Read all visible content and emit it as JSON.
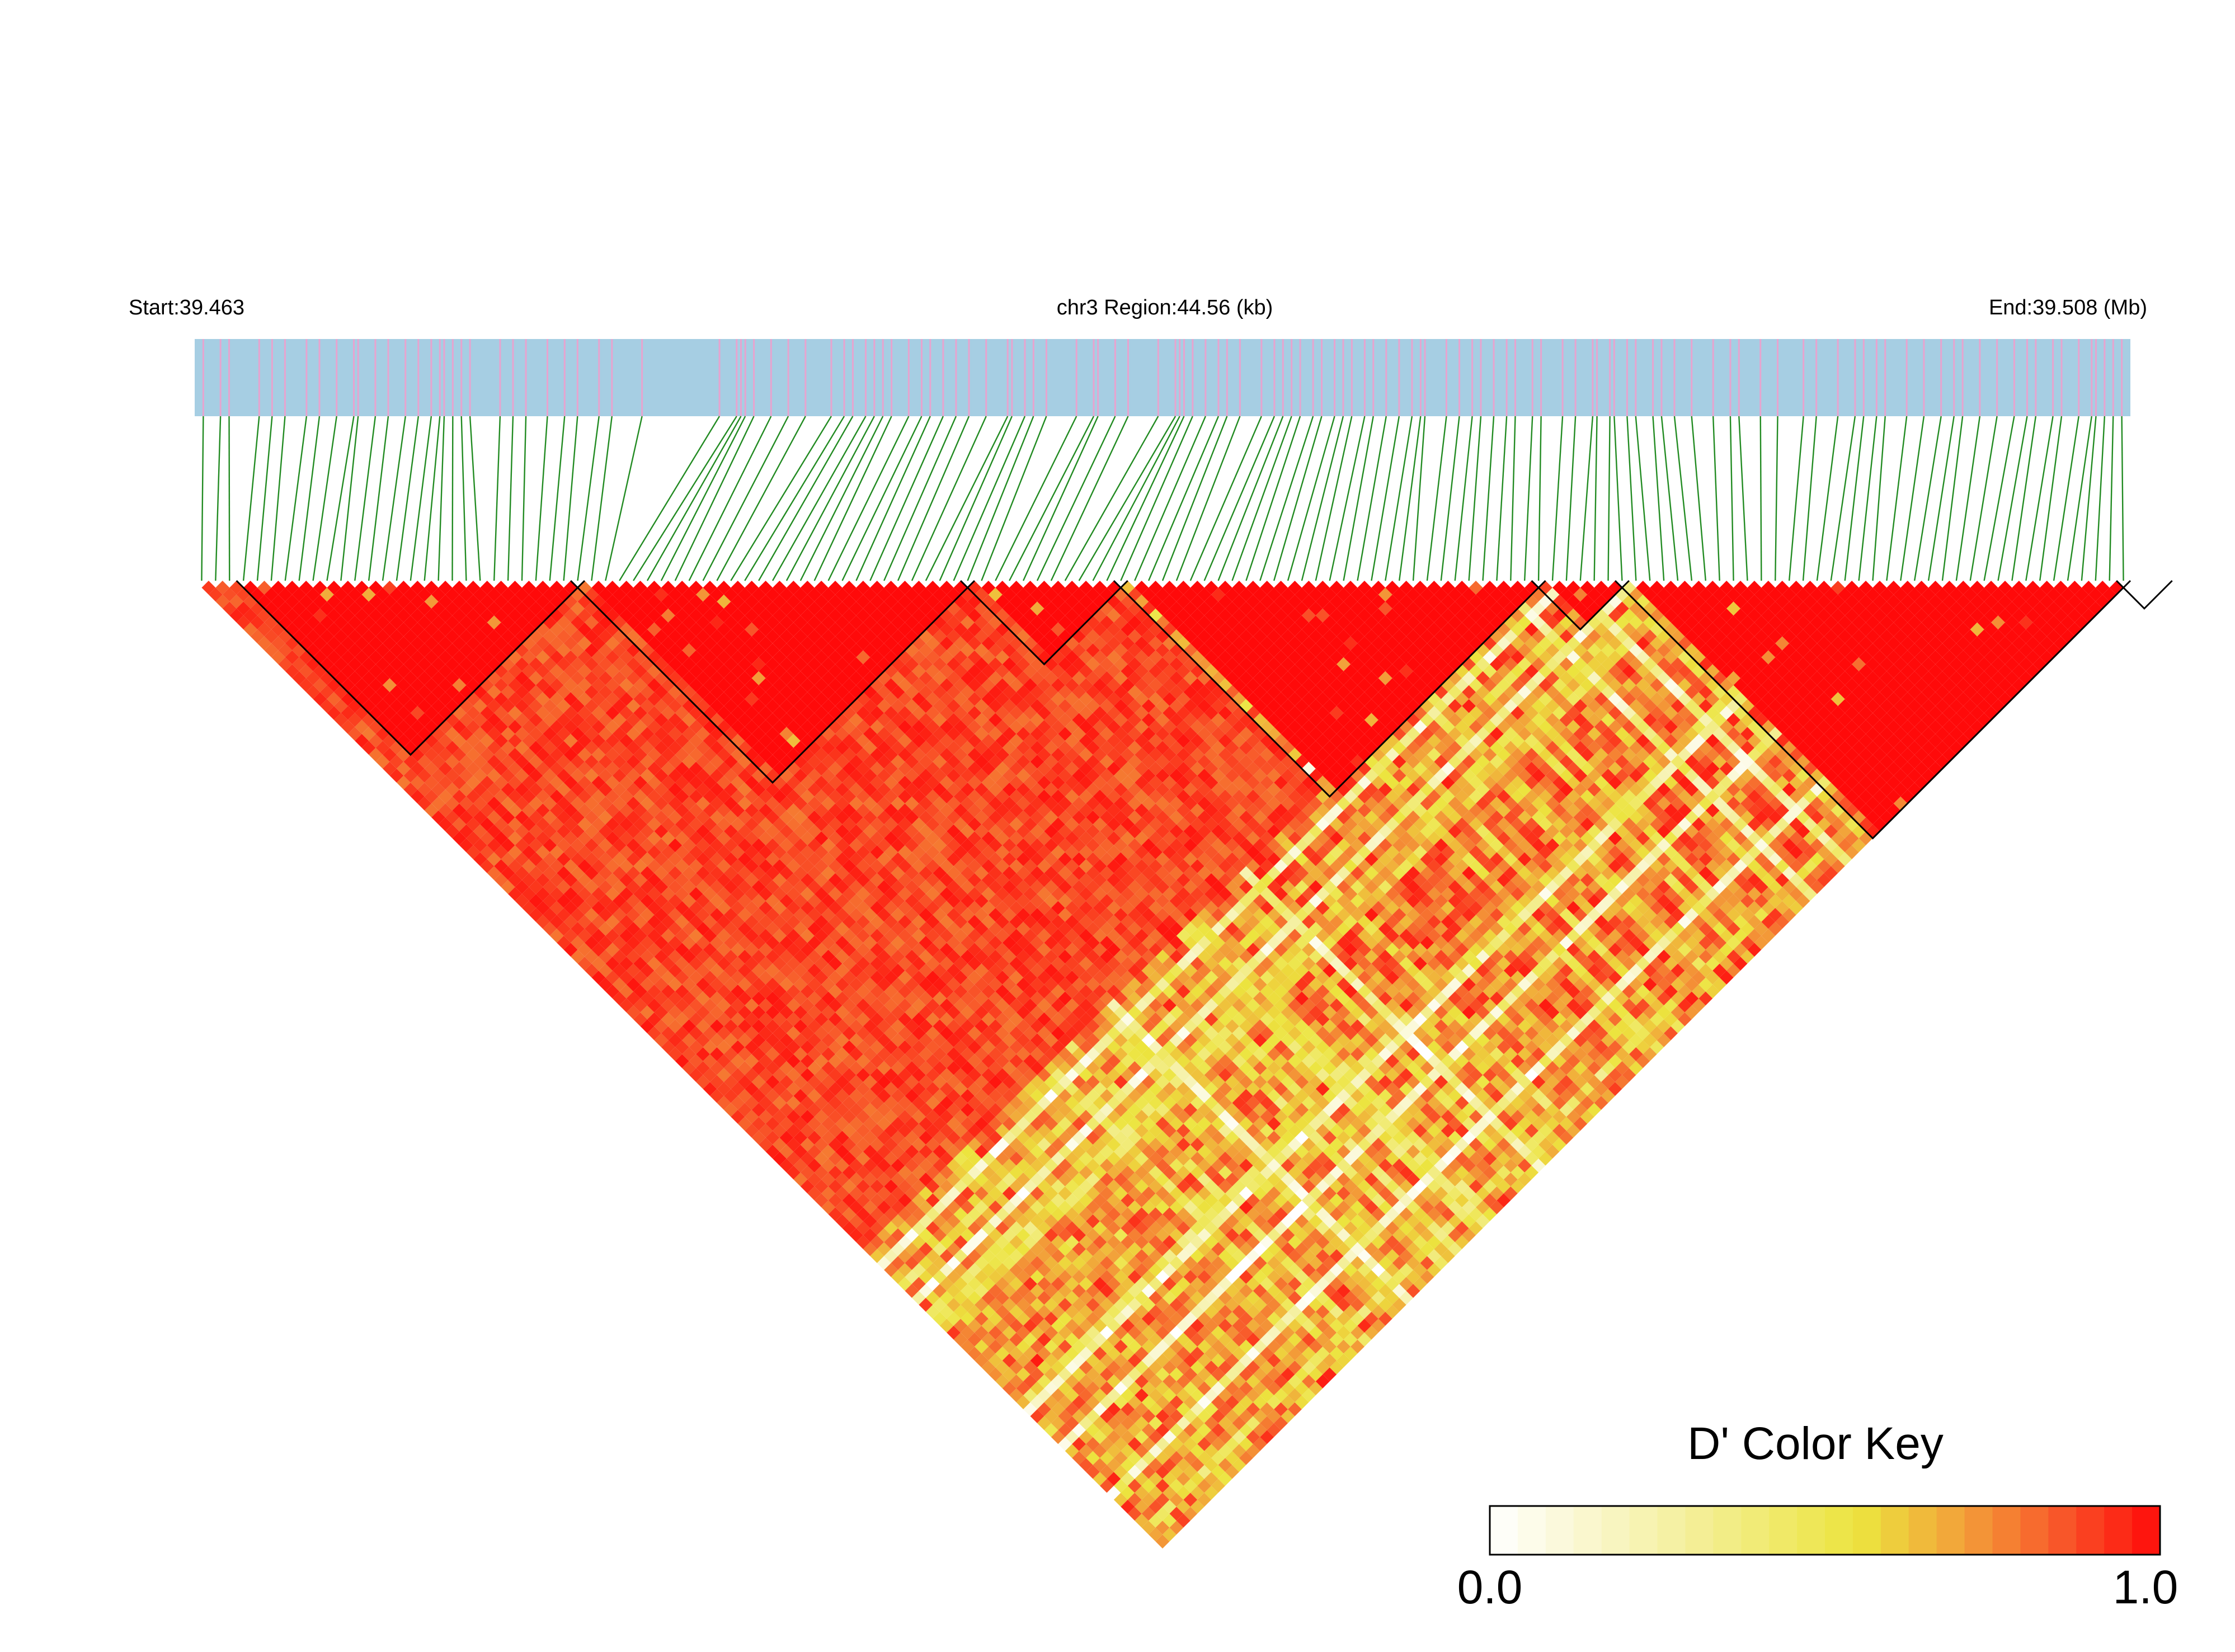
{
  "header": {
    "start_label": "Start:39.463",
    "region_label": "chr3 Region:44.56 (kb)",
    "end_label": "End:39.508 (Mb)"
  },
  "colors": {
    "track_background": "#a6cee3",
    "snp_tick": "#e7a4cf",
    "snp_tick_dense": "#9b8da8",
    "connector_line": "#228b22",
    "block_outline": "#000000",
    "ld_high": "#ff0000",
    "ld_mid": "#f5a63a",
    "ld_low": "#f0e24a",
    "ld_zero": "#ffffff"
  },
  "color_key": {
    "title": "D' Color Key",
    "min_label": "0.0",
    "max_label": "1.0",
    "stops": [
      {
        "value": 0.0,
        "color": "#ffffff"
      },
      {
        "value": 0.3,
        "color": "#f4ef9a"
      },
      {
        "value": 0.55,
        "color": "#ece43e"
      },
      {
        "value": 0.7,
        "color": "#f2a33a"
      },
      {
        "value": 0.85,
        "color": "#f8582a"
      },
      {
        "value": 1.0,
        "color": "#ff0a0a"
      }
    ]
  },
  "chart_data": {
    "type": "heatmap",
    "subtype": "LD triangle heatmap (D')",
    "chromosome": "chr3",
    "region_start_mb": 39.463,
    "region_end_mb": 39.508,
    "region_length_kb": 44.56,
    "n_snps_approx": 200,
    "value_range": [
      0,
      1
    ],
    "snp_positions_mb": [
      39.4632,
      39.4636,
      39.4638,
      39.4645,
      39.4648,
      39.4651,
      39.4656,
      39.4659,
      39.4663,
      39.4667,
      39.4668,
      39.4672,
      39.4675,
      39.4679,
      39.4682,
      39.4685,
      39.4687,
      39.4688,
      39.469,
      39.4692,
      39.4694,
      39.4701,
      39.4704,
      39.4707,
      39.4712,
      39.4716,
      39.4719,
      39.4724,
      39.4727,
      39.4734,
      39.4752,
      39.4756,
      39.4757,
      39.4758,
      39.476,
      39.4764,
      39.4768,
      39.4772,
      39.4778,
      39.4781,
      39.4783,
      39.4786,
      39.4788,
      39.479,
      39.4792,
      39.4796,
      39.4799,
      39.4801,
      39.4804,
      39.4807,
      39.481,
      39.4814,
      39.4819,
      39.482,
      39.4823,
      39.4825,
      39.4828,
      39.4835,
      39.4839,
      39.484,
      39.4844,
      39.4847,
      39.4854,
      39.4858,
      39.4859,
      39.486,
      39.4862,
      39.4865,
      39.4868,
      39.487,
      39.4873,
      39.4878,
      39.4881,
      39.4883,
      39.4885,
      39.4887,
      39.489,
      39.4892,
      39.4895,
      39.4897,
      39.4899,
      39.4902,
      39.4904,
      39.4907,
      39.491,
      39.4913,
      39.4915,
      39.4916,
      39.4921,
      39.4924,
      39.4927,
      39.4929,
      39.4932,
      39.4935,
      39.4937,
      39.4941,
      39.4943,
      39.4948,
      39.4951,
      39.4955,
      39.4956,
      39.4959,
      39.496,
      39.4963,
      39.4965,
      39.4969,
      39.4971,
      39.4974,
      39.4978,
      39.4983,
      39.4987,
      39.4989,
      39.4994,
      39.4998,
      39.5004,
      39.5007,
      39.5012,
      39.5016,
      39.5018,
      39.5021,
      39.5023,
      39.5028,
      39.5032,
      39.5036,
      39.5039,
      39.5041,
      39.5045,
      39.5049,
      39.5053,
      39.5056,
      39.5058,
      39.5062,
      39.5064,
      39.5068,
      39.5071,
      39.5072,
      39.5074,
      39.5076,
      39.5078
    ],
    "haplotype_blocks_snp_index_ranges": [
      [
        3,
        27
      ],
      [
        27,
        55
      ],
      [
        55,
        66
      ],
      [
        66,
        96
      ],
      [
        96,
        102
      ],
      [
        102,
        138
      ],
      [
        138,
        141
      ]
    ],
    "block_note": "black-outlined high-D' triangles",
    "pattern": "blocks ~1.0 (red); inter-block D' mostly 0.6-0.95 (orange) with yellow/white low-LD streaks"
  }
}
